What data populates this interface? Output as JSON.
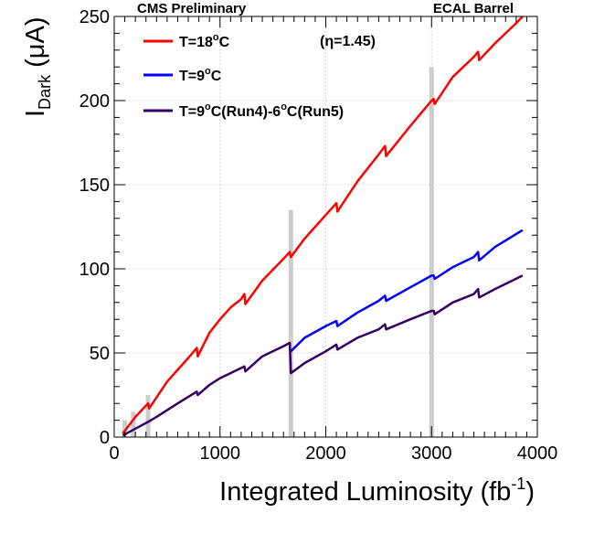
{
  "chart_data": {
    "type": "line",
    "title": "",
    "header_left": "CMS Preliminary",
    "header_right": "ECAL Barrel",
    "annotation": "(η=1.45)",
    "xlabel": {
      "main": "Integrated Luminosity (fb",
      "sup": "-1",
      "close": ")"
    },
    "ylabel": {
      "main": "I",
      "sub": "Dark",
      "unit": " (μA)"
    },
    "xlim": [
      0,
      4000
    ],
    "ylim": [
      0,
      250
    ],
    "xticks": [
      0,
      1000,
      2000,
      3000,
      4000
    ],
    "yticks": [
      0,
      50,
      100,
      150,
      200,
      250
    ],
    "xtick_labels": [
      "0",
      "1000",
      "2000",
      "3000",
      "4000"
    ],
    "ytick_labels": [
      "0",
      "50",
      "100",
      "150",
      "200",
      "250"
    ],
    "grid": true,
    "legend_position": "top-left",
    "legend": [
      {
        "color": "#ff0000",
        "parts": [
          [
            "T=18",
            ""
          ],
          [
            "o",
            "sup"
          ],
          [
            "C",
            ""
          ]
        ]
      },
      {
        "color": "#0000ff",
        "parts": [
          [
            "T=9",
            ""
          ],
          [
            "o",
            "sup"
          ],
          [
            "C",
            ""
          ]
        ]
      },
      {
        "color": "#330066",
        "parts": [
          [
            "T=9",
            ""
          ],
          [
            "o",
            "sup"
          ],
          [
            "C(Run4)-6",
            ""
          ],
          [
            "o",
            "sup"
          ],
          [
            "C(Run5)",
            ""
          ]
        ]
      }
    ],
    "vertical_bands": [
      {
        "x": 100,
        "y_top": 10
      },
      {
        "x": 180,
        "y_top": 15
      },
      {
        "x": 320,
        "y_top": 25
      },
      {
        "x": 1670,
        "y_top": 135
      },
      {
        "x": 3000,
        "y_top": 220
      }
    ],
    "series": [
      {
        "color": "#ff0000",
        "points": [
          [
            80,
            2
          ],
          [
            200,
            12
          ],
          [
            320,
            20
          ],
          [
            330,
            17
          ],
          [
            500,
            33
          ],
          [
            700,
            47
          ],
          [
            780,
            53
          ],
          [
            790,
            48
          ],
          [
            900,
            62
          ],
          [
            1000,
            70
          ],
          [
            1100,
            77
          ],
          [
            1200,
            82
          ],
          [
            1230,
            85
          ],
          [
            1240,
            79
          ],
          [
            1400,
            93
          ],
          [
            1600,
            106
          ],
          [
            1660,
            110
          ],
          [
            1670,
            107
          ],
          [
            1800,
            118
          ],
          [
            2000,
            132
          ],
          [
            2100,
            139
          ],
          [
            2110,
            134
          ],
          [
            2300,
            152
          ],
          [
            2500,
            168
          ],
          [
            2560,
            173
          ],
          [
            2570,
            167
          ],
          [
            2800,
            185
          ],
          [
            3000,
            200
          ],
          [
            3020,
            201
          ],
          [
            3030,
            198
          ],
          [
            3200,
            214
          ],
          [
            3400,
            226
          ],
          [
            3440,
            229
          ],
          [
            3450,
            224
          ],
          [
            3600,
            234
          ],
          [
            3800,
            246
          ],
          [
            3860,
            250
          ]
        ]
      },
      {
        "color": "#0000ff",
        "points": [
          [
            1670,
            51
          ],
          [
            1800,
            59
          ],
          [
            2000,
            66
          ],
          [
            2100,
            69
          ],
          [
            2110,
            66
          ],
          [
            2300,
            74
          ],
          [
            2500,
            81
          ],
          [
            2560,
            84
          ],
          [
            2570,
            81
          ],
          [
            2800,
            89
          ],
          [
            3000,
            96
          ],
          [
            3020,
            96
          ],
          [
            3030,
            94
          ],
          [
            3200,
            101
          ],
          [
            3400,
            107
          ],
          [
            3440,
            110
          ],
          [
            3450,
            105
          ],
          [
            3600,
            113
          ],
          [
            3860,
            123
          ]
        ]
      },
      {
        "color": "#330066",
        "points": [
          [
            80,
            1
          ],
          [
            200,
            5
          ],
          [
            320,
            9
          ],
          [
            400,
            12
          ],
          [
            600,
            20
          ],
          [
            780,
            27
          ],
          [
            790,
            25
          ],
          [
            900,
            31
          ],
          [
            1000,
            35
          ],
          [
            1100,
            38
          ],
          [
            1230,
            42
          ],
          [
            1240,
            39
          ],
          [
            1400,
            48
          ],
          [
            1600,
            54
          ],
          [
            1660,
            56
          ],
          [
            1670,
            38
          ],
          [
            1800,
            44
          ],
          [
            2000,
            51
          ],
          [
            2100,
            55
          ],
          [
            2110,
            52
          ],
          [
            2300,
            59
          ],
          [
            2500,
            64
          ],
          [
            2560,
            67
          ],
          [
            2570,
            64
          ],
          [
            2800,
            70
          ],
          [
            3000,
            75
          ],
          [
            3020,
            75
          ],
          [
            3030,
            73
          ],
          [
            3200,
            80
          ],
          [
            3400,
            85
          ],
          [
            3440,
            88
          ],
          [
            3450,
            83
          ],
          [
            3600,
            88
          ],
          [
            3860,
            96
          ]
        ]
      }
    ]
  }
}
